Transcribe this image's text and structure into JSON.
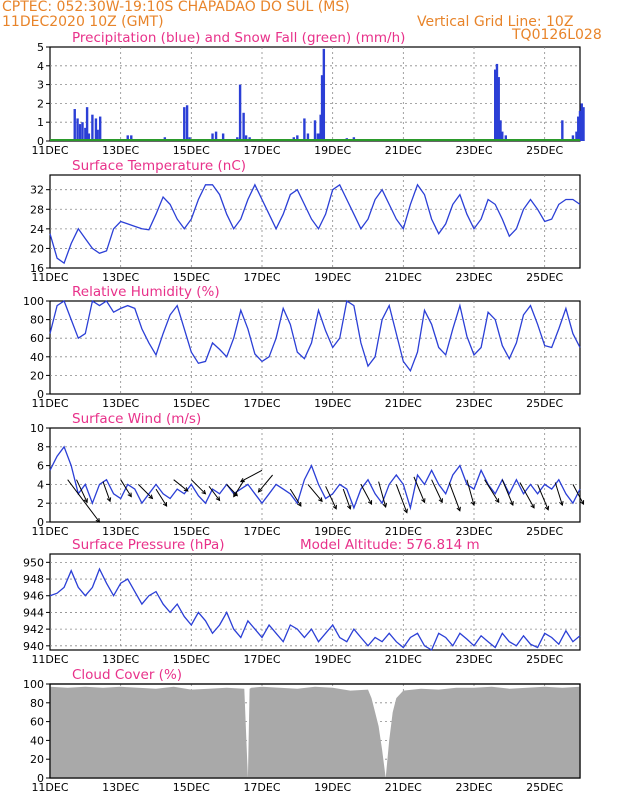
{
  "header": {
    "line1": "CPTEC:   052:30W-19:10S   CHAPADAO DO SUL (MS)",
    "line2": "11DEC2020 10Z (GMT)",
    "grid_note": "Vertical Grid Line: 10Z",
    "run_code": "TQ0126L028"
  },
  "colors": {
    "header": "#e8842a",
    "title": "#e8318a",
    "line": "#2b3fd6",
    "precip": "#2b3fd6",
    "snow": "#2a9a2a",
    "cloud": "#a9a9a9",
    "grid": "#8a8a8a",
    "wind_arrow": "#000000"
  },
  "x_tick_labels": [
    "11DEC",
    "13DEC",
    "15DEC",
    "17DEC",
    "19DEC",
    "21DEC",
    "23DEC",
    "25DEC"
  ],
  "chart_data": [
    {
      "type": "bar",
      "title": "Precipitation (blue) and Snow Fall (green) (mm/h)",
      "yticks": [
        "0",
        "1",
        "2",
        "3",
        "4",
        "5"
      ],
      "ylim": [
        0,
        5
      ],
      "x_days": [
        0.7,
        0.78,
        0.85,
        0.92,
        1.0,
        1.05,
        1.1,
        1.2,
        1.3,
        1.35,
        1.42,
        2.2,
        2.3,
        3.05,
        3.15,
        3.25,
        3.8,
        3.88,
        3.95,
        4.6,
        4.7,
        4.9,
        5.3,
        5.38,
        5.48,
        5.55,
        5.65,
        6.9,
        7.0,
        7.2,
        7.3,
        7.5,
        7.58,
        7.62,
        7.66,
        7.7,
        7.75,
        8.1,
        8.2,
        8.4,
        8.6,
        8.7,
        9.1,
        9.3,
        12.6,
        12.65,
        12.7,
        12.75,
        12.8,
        12.9,
        14.5,
        14.8,
        14.9,
        14.95,
        15.0,
        15.05,
        15.1
      ],
      "series": [
        {
          "name": "Precipitation",
          "values": [
            1.7,
            1.2,
            0.9,
            1.0,
            0.7,
            1.8,
            0.4,
            1.4,
            1.2,
            0.6,
            1.3,
            0.3,
            0.3,
            0.05,
            0.1,
            0.2,
            1.8,
            1.9,
            0.2,
            0.4,
            0.5,
            0.4,
            0.2,
            3.0,
            1.5,
            0.3,
            0.2,
            0.2,
            0.3,
            1.2,
            0.4,
            1.1,
            0.4,
            0.4,
            1.4,
            3.5,
            4.9,
            0.1,
            0.1,
            0.15,
            0.2,
            0.1,
            0.1,
            0.1,
            3.8,
            4.1,
            3.4,
            1.1,
            0.5,
            0.3,
            1.1,
            0.3,
            0.5,
            1.3,
            1.6,
            2.0,
            1.8
          ]
        },
        {
          "name": "Snow Fall",
          "values": [
            0
          ]
        }
      ]
    },
    {
      "type": "line",
      "title": "Surface Temperature (nC)",
      "yticks": [
        "16",
        "20",
        "24",
        "28",
        "32"
      ],
      "ylim": [
        16,
        35
      ],
      "x_days": [
        0,
        0.2,
        0.4,
        0.6,
        0.8,
        1.0,
        1.2,
        1.4,
        1.6,
        1.8,
        2.0,
        2.2,
        2.4,
        2.6,
        2.8,
        3.0,
        3.2,
        3.4,
        3.6,
        3.8,
        4.0,
        4.2,
        4.4,
        4.6,
        4.8,
        5.0,
        5.2,
        5.4,
        5.6,
        5.8,
        6.0,
        6.2,
        6.4,
        6.6,
        6.8,
        7.0,
        7.2,
        7.4,
        7.6,
        7.8,
        8.0,
        8.2,
        8.4,
        8.6,
        8.8,
        9.0,
        9.2,
        9.4,
        9.6,
        9.8,
        10.0,
        10.2,
        10.4,
        10.6,
        10.8,
        11.0,
        11.2,
        11.4,
        11.6,
        11.8,
        12.0,
        12.2,
        12.4,
        12.6,
        12.8,
        13.0,
        13.2,
        13.4,
        13.6,
        13.8,
        14.0,
        14.2,
        14.4,
        14.6,
        14.8,
        15.0
      ],
      "series": [
        {
          "name": "Temperature",
          "values": [
            23,
            18,
            17,
            21,
            24,
            22,
            20,
            19,
            19.5,
            24,
            25.5,
            25,
            24.5,
            24,
            23.8,
            27,
            30.5,
            29,
            26,
            24,
            26,
            30,
            33,
            33,
            31,
            27,
            24,
            26,
            30,
            33,
            30,
            27,
            24,
            27,
            31,
            32,
            29,
            26,
            24,
            27,
            32,
            33,
            30,
            27,
            24,
            26,
            30,
            32,
            29,
            26,
            24,
            29,
            33,
            31,
            26,
            23,
            25,
            29,
            31,
            27,
            24,
            26,
            30,
            29,
            26,
            22.5,
            24,
            28,
            30,
            28,
            25.5,
            26,
            29,
            30,
            30,
            29
          ]
        }
      ]
    },
    {
      "type": "line",
      "title": "Relative Humidity (%)",
      "yticks": [
        "0",
        "20",
        "40",
        "60",
        "80",
        "100"
      ],
      "ylim": [
        0,
        100
      ],
      "x_days": [
        0,
        0.2,
        0.4,
        0.6,
        0.8,
        1.0,
        1.2,
        1.4,
        1.6,
        1.8,
        2.0,
        2.2,
        2.4,
        2.6,
        2.8,
        3.0,
        3.2,
        3.4,
        3.6,
        3.8,
        4.0,
        4.2,
        4.4,
        4.6,
        4.8,
        5.0,
        5.2,
        5.4,
        5.6,
        5.8,
        6.0,
        6.2,
        6.4,
        6.6,
        6.8,
        7.0,
        7.2,
        7.4,
        7.6,
        7.8,
        8.0,
        8.2,
        8.4,
        8.6,
        8.8,
        9.0,
        9.2,
        9.4,
        9.6,
        9.8,
        10.0,
        10.2,
        10.4,
        10.6,
        10.8,
        11.0,
        11.2,
        11.4,
        11.6,
        11.8,
        12.0,
        12.2,
        12.4,
        12.6,
        12.8,
        13.0,
        13.2,
        13.4,
        13.6,
        13.8,
        14.0,
        14.2,
        14.4,
        14.6,
        14.8,
        15.0
      ],
      "series": [
        {
          "name": "Humidity",
          "values": [
            65,
            95,
            100,
            80,
            60,
            65,
            100,
            95,
            100,
            88,
            92,
            95,
            92,
            70,
            55,
            42,
            65,
            85,
            95,
            70,
            45,
            33,
            35,
            55,
            48,
            40,
            60,
            90,
            70,
            43,
            35,
            40,
            60,
            92,
            75,
            45,
            38,
            55,
            90,
            68,
            50,
            60,
            100,
            95,
            55,
            30,
            40,
            80,
            95,
            65,
            35,
            25,
            45,
            90,
            75,
            50,
            42,
            70,
            95,
            62,
            42,
            50,
            88,
            80,
            52,
            38,
            55,
            85,
            95,
            75,
            52,
            50,
            70,
            92,
            65,
            50
          ]
        }
      ]
    },
    {
      "type": "line",
      "title": "Surface Wind (m/s)",
      "yticks": [
        "0",
        "2",
        "4",
        "6",
        "8",
        "10"
      ],
      "ylim": [
        0,
        10
      ],
      "x_days": [
        0,
        0.2,
        0.4,
        0.6,
        0.8,
        1.0,
        1.2,
        1.4,
        1.6,
        1.8,
        2.0,
        2.2,
        2.4,
        2.6,
        2.8,
        3.0,
        3.2,
        3.4,
        3.6,
        3.8,
        4.0,
        4.2,
        4.4,
        4.6,
        4.8,
        5.0,
        5.2,
        5.4,
        5.6,
        5.8,
        6.0,
        6.2,
        6.4,
        6.6,
        6.8,
        7.0,
        7.2,
        7.4,
        7.6,
        7.8,
        8.0,
        8.2,
        8.4,
        8.6,
        8.8,
        9.0,
        9.2,
        9.4,
        9.6,
        9.8,
        10.0,
        10.2,
        10.4,
        10.6,
        10.8,
        11.0,
        11.2,
        11.4,
        11.6,
        11.8,
        12.0,
        12.2,
        12.4,
        12.6,
        12.8,
        13.0,
        13.2,
        13.4,
        13.6,
        13.8,
        14.0,
        14.2,
        14.4,
        14.6,
        14.8,
        15.0
      ],
      "series": [
        {
          "name": "Wind speed",
          "values": [
            5.5,
            7,
            8,
            6,
            3,
            4,
            2,
            4,
            4.5,
            3,
            2.5,
            4,
            3.5,
            2,
            3,
            4,
            3,
            2.5,
            3.5,
            3,
            4,
            2.8,
            2,
            3.5,
            3,
            4,
            3,
            3.5,
            4,
            3,
            2,
            3,
            4,
            3.5,
            3,
            2,
            4.5,
            6,
            4,
            2.5,
            3,
            4,
            3.5,
            1.5,
            3.5,
            4.5,
            3,
            2,
            4,
            5,
            4,
            1.5,
            5,
            4,
            5.5,
            4,
            3,
            5,
            6,
            4,
            3.5,
            5.5,
            4,
            3,
            4.5,
            3,
            4.5,
            3,
            4,
            3,
            4,
            3.5,
            4.5,
            3,
            2,
            3.5
          ]
        }
      ]
    },
    {
      "type": "line",
      "title": "Surface Pressure (hPa)",
      "annotation": "Model Altitude: 576.814 m",
      "yticks": [
        "940",
        "942",
        "944",
        "946",
        "948",
        "950"
      ],
      "ylim": [
        939.5,
        951
      ],
      "x_days": [
        0,
        0.2,
        0.4,
        0.6,
        0.8,
        1.0,
        1.2,
        1.4,
        1.6,
        1.8,
        2.0,
        2.2,
        2.4,
        2.6,
        2.8,
        3.0,
        3.2,
        3.4,
        3.6,
        3.8,
        4.0,
        4.2,
        4.4,
        4.6,
        4.8,
        5.0,
        5.2,
        5.4,
        5.6,
        5.8,
        6.0,
        6.2,
        6.4,
        6.6,
        6.8,
        7.0,
        7.2,
        7.4,
        7.6,
        7.8,
        8.0,
        8.2,
        8.4,
        8.6,
        8.8,
        9.0,
        9.2,
        9.4,
        9.6,
        9.8,
        10.0,
        10.2,
        10.4,
        10.6,
        10.8,
        11.0,
        11.2,
        11.4,
        11.6,
        11.8,
        12.0,
        12.2,
        12.4,
        12.6,
        12.8,
        13.0,
        13.2,
        13.4,
        13.6,
        13.8,
        14.0,
        14.2,
        14.4,
        14.6,
        14.8,
        15.0
      ],
      "series": [
        {
          "name": "Pressure",
          "values": [
            946,
            946.3,
            947,
            949,
            947,
            946,
            947,
            949.2,
            947.5,
            946,
            947.5,
            948,
            946.5,
            945,
            946,
            946.5,
            945,
            944,
            945,
            943.5,
            942.5,
            944,
            943,
            941.5,
            942.5,
            944,
            942,
            941,
            943,
            942,
            941,
            942.5,
            941.5,
            940.5,
            942.5,
            942,
            941,
            942,
            940.5,
            941.5,
            942.5,
            941,
            940.5,
            942,
            941,
            940,
            941,
            940.5,
            941.5,
            940.5,
            939.8,
            941,
            941.5,
            940,
            939.5,
            941.5,
            941,
            940,
            941.5,
            940.8,
            940,
            941.2,
            940.5,
            939.8,
            941.5,
            940.5,
            940,
            941.2,
            940.2,
            939.8,
            941.5,
            941,
            940.2,
            941.8,
            940.5,
            941.2
          ]
        }
      ]
    },
    {
      "type": "area",
      "title": "Cloud Cover (%)",
      "yticks": [
        "0",
        "20",
        "40",
        "60",
        "80",
        "100"
      ],
      "ylim": [
        0,
        100
      ],
      "x_days": [
        0,
        0.5,
        1.0,
        1.5,
        2.0,
        2.5,
        3.0,
        3.5,
        4.0,
        4.5,
        5.0,
        5.5,
        5.6,
        5.65,
        5.7,
        6.0,
        6.5,
        7.0,
        7.5,
        8.0,
        8.5,
        9.0,
        9.1,
        9.2,
        9.3,
        9.4,
        9.5,
        9.6,
        9.7,
        9.8,
        10.0,
        10.5,
        11.0,
        11.5,
        12.0,
        12.5,
        13.0,
        13.5,
        14.0,
        14.5,
        15.0
      ],
      "series": [
        {
          "name": "Cloud cover",
          "values": [
            97,
            96,
            97,
            96,
            97,
            96,
            95,
            97,
            94,
            95,
            96,
            95,
            0,
            95,
            96,
            97,
            96,
            95,
            97,
            96,
            93,
            94,
            85,
            70,
            55,
            30,
            0,
            40,
            70,
            85,
            93,
            95,
            94,
            96,
            96,
            97,
            95,
            96,
            97,
            96,
            97
          ]
        }
      ]
    }
  ]
}
